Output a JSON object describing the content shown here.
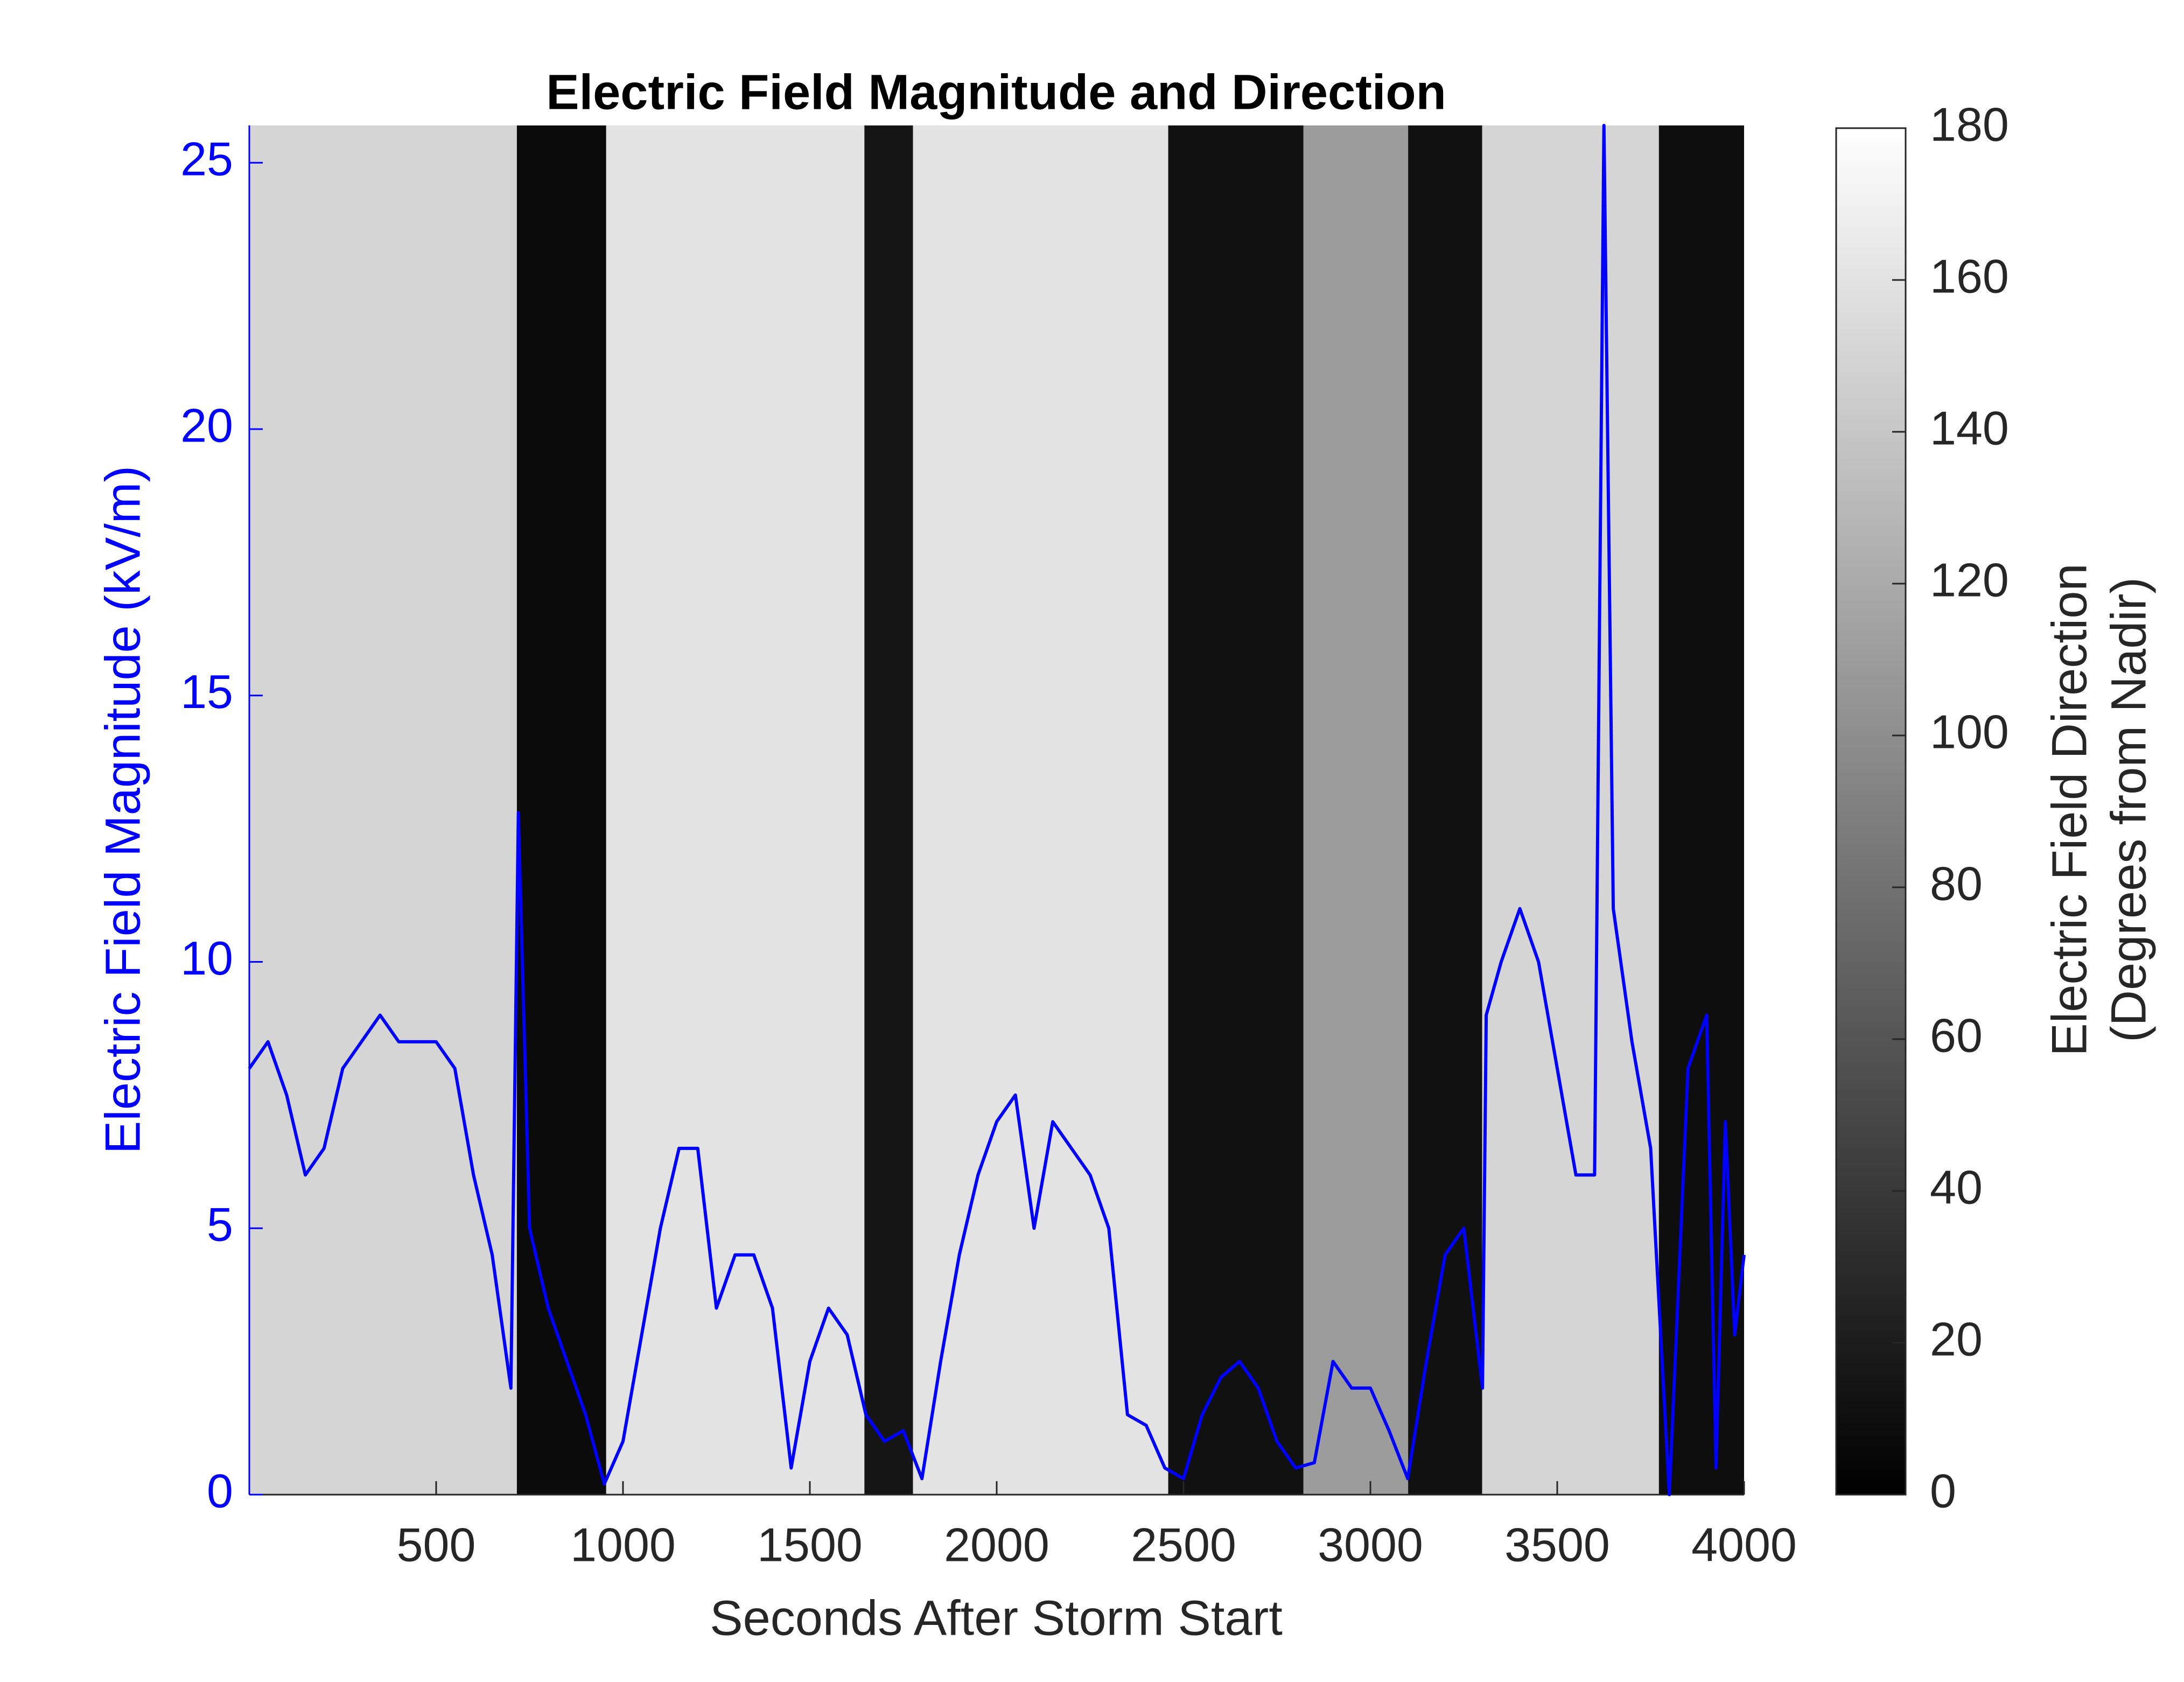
{
  "chart_data": {
    "type": "line",
    "title": "Electric Field Magnitude and Direction",
    "x_label": "Seconds After Storm Start",
    "y_label": "Electric Field Magnitude (kV/m)",
    "xlim": [
      0,
      4000
    ],
    "xticks": [
      500,
      1000,
      1500,
      2000,
      2500,
      3000,
      3500,
      4000
    ],
    "ylim": [
      0,
      25.7
    ],
    "yticks": [
      0,
      5,
      10,
      15,
      20,
      25
    ],
    "x": [
      0,
      50,
      100,
      150,
      200,
      250,
      300,
      350,
      400,
      450,
      500,
      550,
      600,
      650,
      700,
      720,
      750,
      800,
      850,
      900,
      950,
      1000,
      1050,
      1100,
      1150,
      1200,
      1250,
      1300,
      1350,
      1400,
      1450,
      1500,
      1550,
      1600,
      1650,
      1700,
      1750,
      1800,
      1850,
      1900,
      1950,
      2000,
      2050,
      2100,
      2150,
      2200,
      2250,
      2300,
      2350,
      2400,
      2450,
      2500,
      2550,
      2600,
      2650,
      2700,
      2750,
      2800,
      2850,
      2900,
      2950,
      3000,
      3050,
      3100,
      3150,
      3200,
      3250,
      3300,
      3310,
      3350,
      3400,
      3450,
      3500,
      3550,
      3600,
      3625,
      3650,
      3700,
      3750,
      3800,
      3850,
      3900,
      3925,
      3950,
      3975,
      4000
    ],
    "series": [
      {
        "name": "Electric Field Magnitude",
        "color": "#0000ff",
        "values": [
          8,
          8.5,
          7.5,
          6,
          6.5,
          8,
          8.5,
          9,
          8.5,
          8.5,
          8.5,
          8,
          6,
          4.5,
          2,
          12.8,
          5,
          3.5,
          2.5,
          1.5,
          0.2,
          1,
          3,
          5,
          6.5,
          6.5,
          3.5,
          4.5,
          4.5,
          3.5,
          0.5,
          2.5,
          3.5,
          3,
          1.5,
          1,
          1.2,
          0.3,
          2.5,
          4.5,
          6,
          7,
          7.5,
          5,
          7,
          6.5,
          6,
          5,
          1.5,
          1.3,
          0.5,
          0.3,
          1.5,
          2.2,
          2.5,
          2,
          1,
          0.5,
          0.6,
          2.5,
          2,
          2,
          1.2,
          0.3,
          2.5,
          4.5,
          5,
          2,
          9,
          10,
          11,
          10,
          8,
          6,
          6,
          25.7,
          11,
          8.5,
          6.5,
          0,
          8,
          9,
          0.5,
          7,
          3,
          4.5
        ]
      }
    ],
    "direction_bands": {
      "start": [
        0,
        716,
        955,
        1646,
        1776,
        2459,
        2821,
        3101,
        3299,
        3772
      ],
      "end": [
        716,
        955,
        1646,
        1776,
        2459,
        2821,
        3101,
        3299,
        3772,
        4000
      ],
      "values": [
        150,
        8,
        160,
        15,
        160,
        12,
        110,
        12,
        150,
        10
      ]
    },
    "colorbar": {
      "label": [
        "Electric Field Direction",
        "(Degrees from Nadir)"
      ],
      "clim": [
        0,
        180
      ],
      "ticks": [
        0,
        20,
        40,
        60,
        80,
        100,
        120,
        140,
        160,
        180
      ]
    }
  }
}
